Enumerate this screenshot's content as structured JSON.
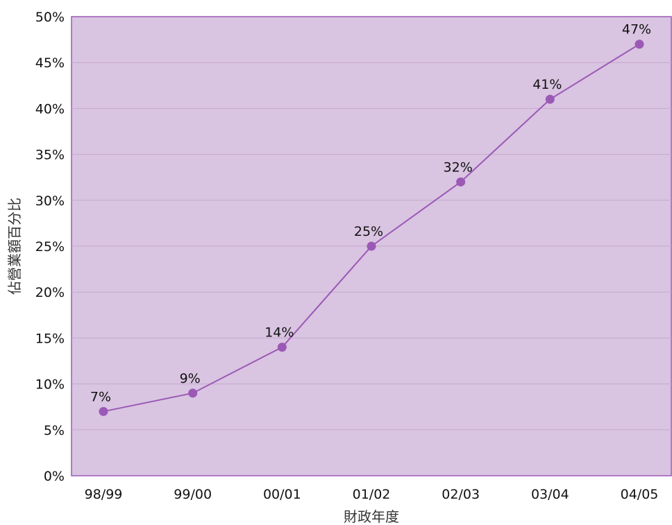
{
  "chart_data": {
    "type": "line",
    "categories": [
      "98/99",
      "99/00",
      "00/01",
      "01/02",
      "02/03",
      "03/04",
      "04/05"
    ],
    "series": [
      {
        "values": [
          7,
          9,
          14,
          25,
          32,
          41,
          47
        ],
        "labels": [
          "7%",
          "9%",
          "14%",
          "25%",
          "32%",
          "41%",
          "47%"
        ]
      }
    ],
    "xlabel": "財政年度",
    "ylabel": "佔營業額百分比",
    "ylim": [
      0,
      50
    ],
    "ytick_values": [
      0,
      5,
      10,
      15,
      20,
      25,
      30,
      35,
      40,
      45,
      50
    ],
    "ytick_labels": [
      "0%",
      "5%",
      "10%",
      "15%",
      "20%",
      "25%",
      "30%",
      "35%",
      "40%",
      "45%",
      "50%"
    ],
    "grid": true,
    "legend": false,
    "colors": {
      "plot_background": "#d9c4e1",
      "plot_border": "#9b59b6",
      "gridline": "#c6a9cf",
      "line": "#9b59b6",
      "marker": "#9b59b6"
    }
  }
}
